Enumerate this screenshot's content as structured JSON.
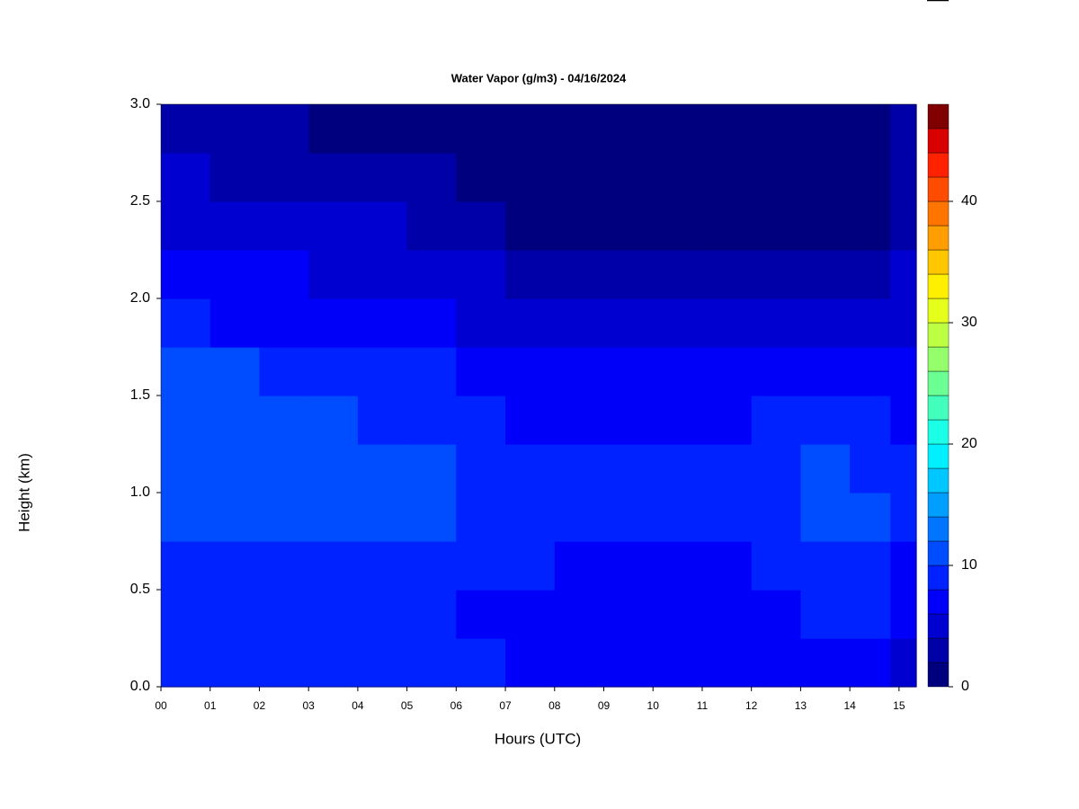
{
  "chart_data": {
    "type": "heatmap",
    "title": "Water Vapor (g/m3) - 04/16/2024",
    "xlabel": "Hours (UTC)",
    "ylabel": "Height (km)",
    "xlim": [
      0,
      15.35
    ],
    "ylim": [
      0,
      3
    ],
    "xticks": [
      {
        "value": 0,
        "label": "00"
      },
      {
        "value": 1,
        "label": "01"
      },
      {
        "value": 2,
        "label": "02"
      },
      {
        "value": 3,
        "label": "03"
      },
      {
        "value": 4,
        "label": "04"
      },
      {
        "value": 5,
        "label": "05"
      },
      {
        "value": 6,
        "label": "06"
      },
      {
        "value": 7,
        "label": "07"
      },
      {
        "value": 8,
        "label": "08"
      },
      {
        "value": 9,
        "label": "09"
      },
      {
        "value": 10,
        "label": "10"
      },
      {
        "value": 11,
        "label": "11"
      },
      {
        "value": 12,
        "label": "12"
      },
      {
        "value": 13,
        "label": "13"
      },
      {
        "value": 14,
        "label": "14"
      },
      {
        "value": 15,
        "label": "15"
      }
    ],
    "yticks": [
      {
        "value": 0,
        "label": "0.0"
      },
      {
        "value": 0.5,
        "label": "0.5"
      },
      {
        "value": 1,
        "label": "1.0"
      },
      {
        "value": 1.5,
        "label": "1.5"
      },
      {
        "value": 2,
        "label": "2.0"
      },
      {
        "value": 2.5,
        "label": "2.5"
      },
      {
        "value": 3,
        "label": "3.0"
      }
    ],
    "x": [
      0.5,
      1.5,
      2.5,
      3.5,
      4.5,
      5.5,
      6.5,
      7.5,
      8.5,
      9.5,
      10.5,
      11.5,
      12.5,
      13.5,
      14.5,
      15.15
    ],
    "y": [
      0.125,
      0.375,
      0.625,
      0.875,
      1.125,
      1.375,
      1.625,
      1.875,
      2.125,
      2.375,
      2.625,
      2.875
    ],
    "z": [
      [
        9,
        9,
        9,
        9,
        9,
        9,
        9,
        7,
        7,
        7,
        7,
        7,
        7,
        7,
        7,
        5
      ],
      [
        9,
        9,
        9,
        9,
        9,
        9,
        7,
        7,
        7,
        7,
        7,
        7,
        7,
        9,
        9,
        7
      ],
      [
        9,
        9,
        9,
        9,
        9,
        9,
        9,
        9,
        7,
        7,
        7,
        7,
        9,
        9,
        9,
        7
      ],
      [
        11,
        11,
        11,
        11,
        11,
        11,
        9,
        9,
        9,
        9,
        9,
        9,
        9,
        11,
        11,
        9
      ],
      [
        11,
        11,
        11,
        11,
        11,
        11,
        9,
        9,
        9,
        9,
        9,
        9,
        9,
        11,
        9,
        9
      ],
      [
        11,
        11,
        11,
        11,
        9,
        9,
        9,
        7,
        7,
        7,
        7,
        7,
        9,
        9,
        9,
        7
      ],
      [
        11,
        11,
        9,
        9,
        9,
        9,
        7,
        7,
        7,
        7,
        7,
        7,
        7,
        7,
        7,
        7
      ],
      [
        9,
        7,
        7,
        7,
        7,
        7,
        5,
        5,
        5,
        5,
        5,
        5,
        5,
        5,
        5,
        5
      ],
      [
        7,
        7,
        7,
        5,
        5,
        5,
        5,
        3,
        3,
        3,
        3,
        3,
        3,
        3,
        3,
        5
      ],
      [
        5,
        5,
        5,
        5,
        5,
        3,
        3,
        1,
        1,
        1,
        1,
        1,
        1,
        1,
        1,
        3
      ],
      [
        5,
        3,
        3,
        3,
        3,
        3,
        1,
        1,
        1,
        1,
        1,
        1,
        1,
        1,
        1,
        3
      ],
      [
        3,
        3,
        3,
        1,
        1,
        1,
        1,
        1,
        1,
        1,
        1,
        1,
        1,
        1,
        1,
        3
      ]
    ],
    "levels": [
      0,
      2,
      4,
      6,
      8,
      10,
      12,
      14,
      16,
      18,
      20,
      22,
      24,
      26,
      28,
      30,
      32,
      34,
      36,
      38,
      40,
      42,
      44,
      46,
      48
    ],
    "colors": [
      "#00007F",
      "#0000A8",
      "#0000D1",
      "#0000FA",
      "#0022FF",
      "#004CFF",
      "#0075FF",
      "#009EFF",
      "#00C7FF",
      "#00F0FF",
      "#1AFFE5",
      "#42FFBD",
      "#6BFF94",
      "#94FF6B",
      "#BDFF42",
      "#E5FF1A",
      "#FFF000",
      "#FFC700",
      "#FF9E00",
      "#FF7500",
      "#FF4C00",
      "#FF2200",
      "#D90000",
      "#800000"
    ],
    "colorbar_ticks": [
      0,
      10,
      20,
      30,
      40
    ]
  }
}
